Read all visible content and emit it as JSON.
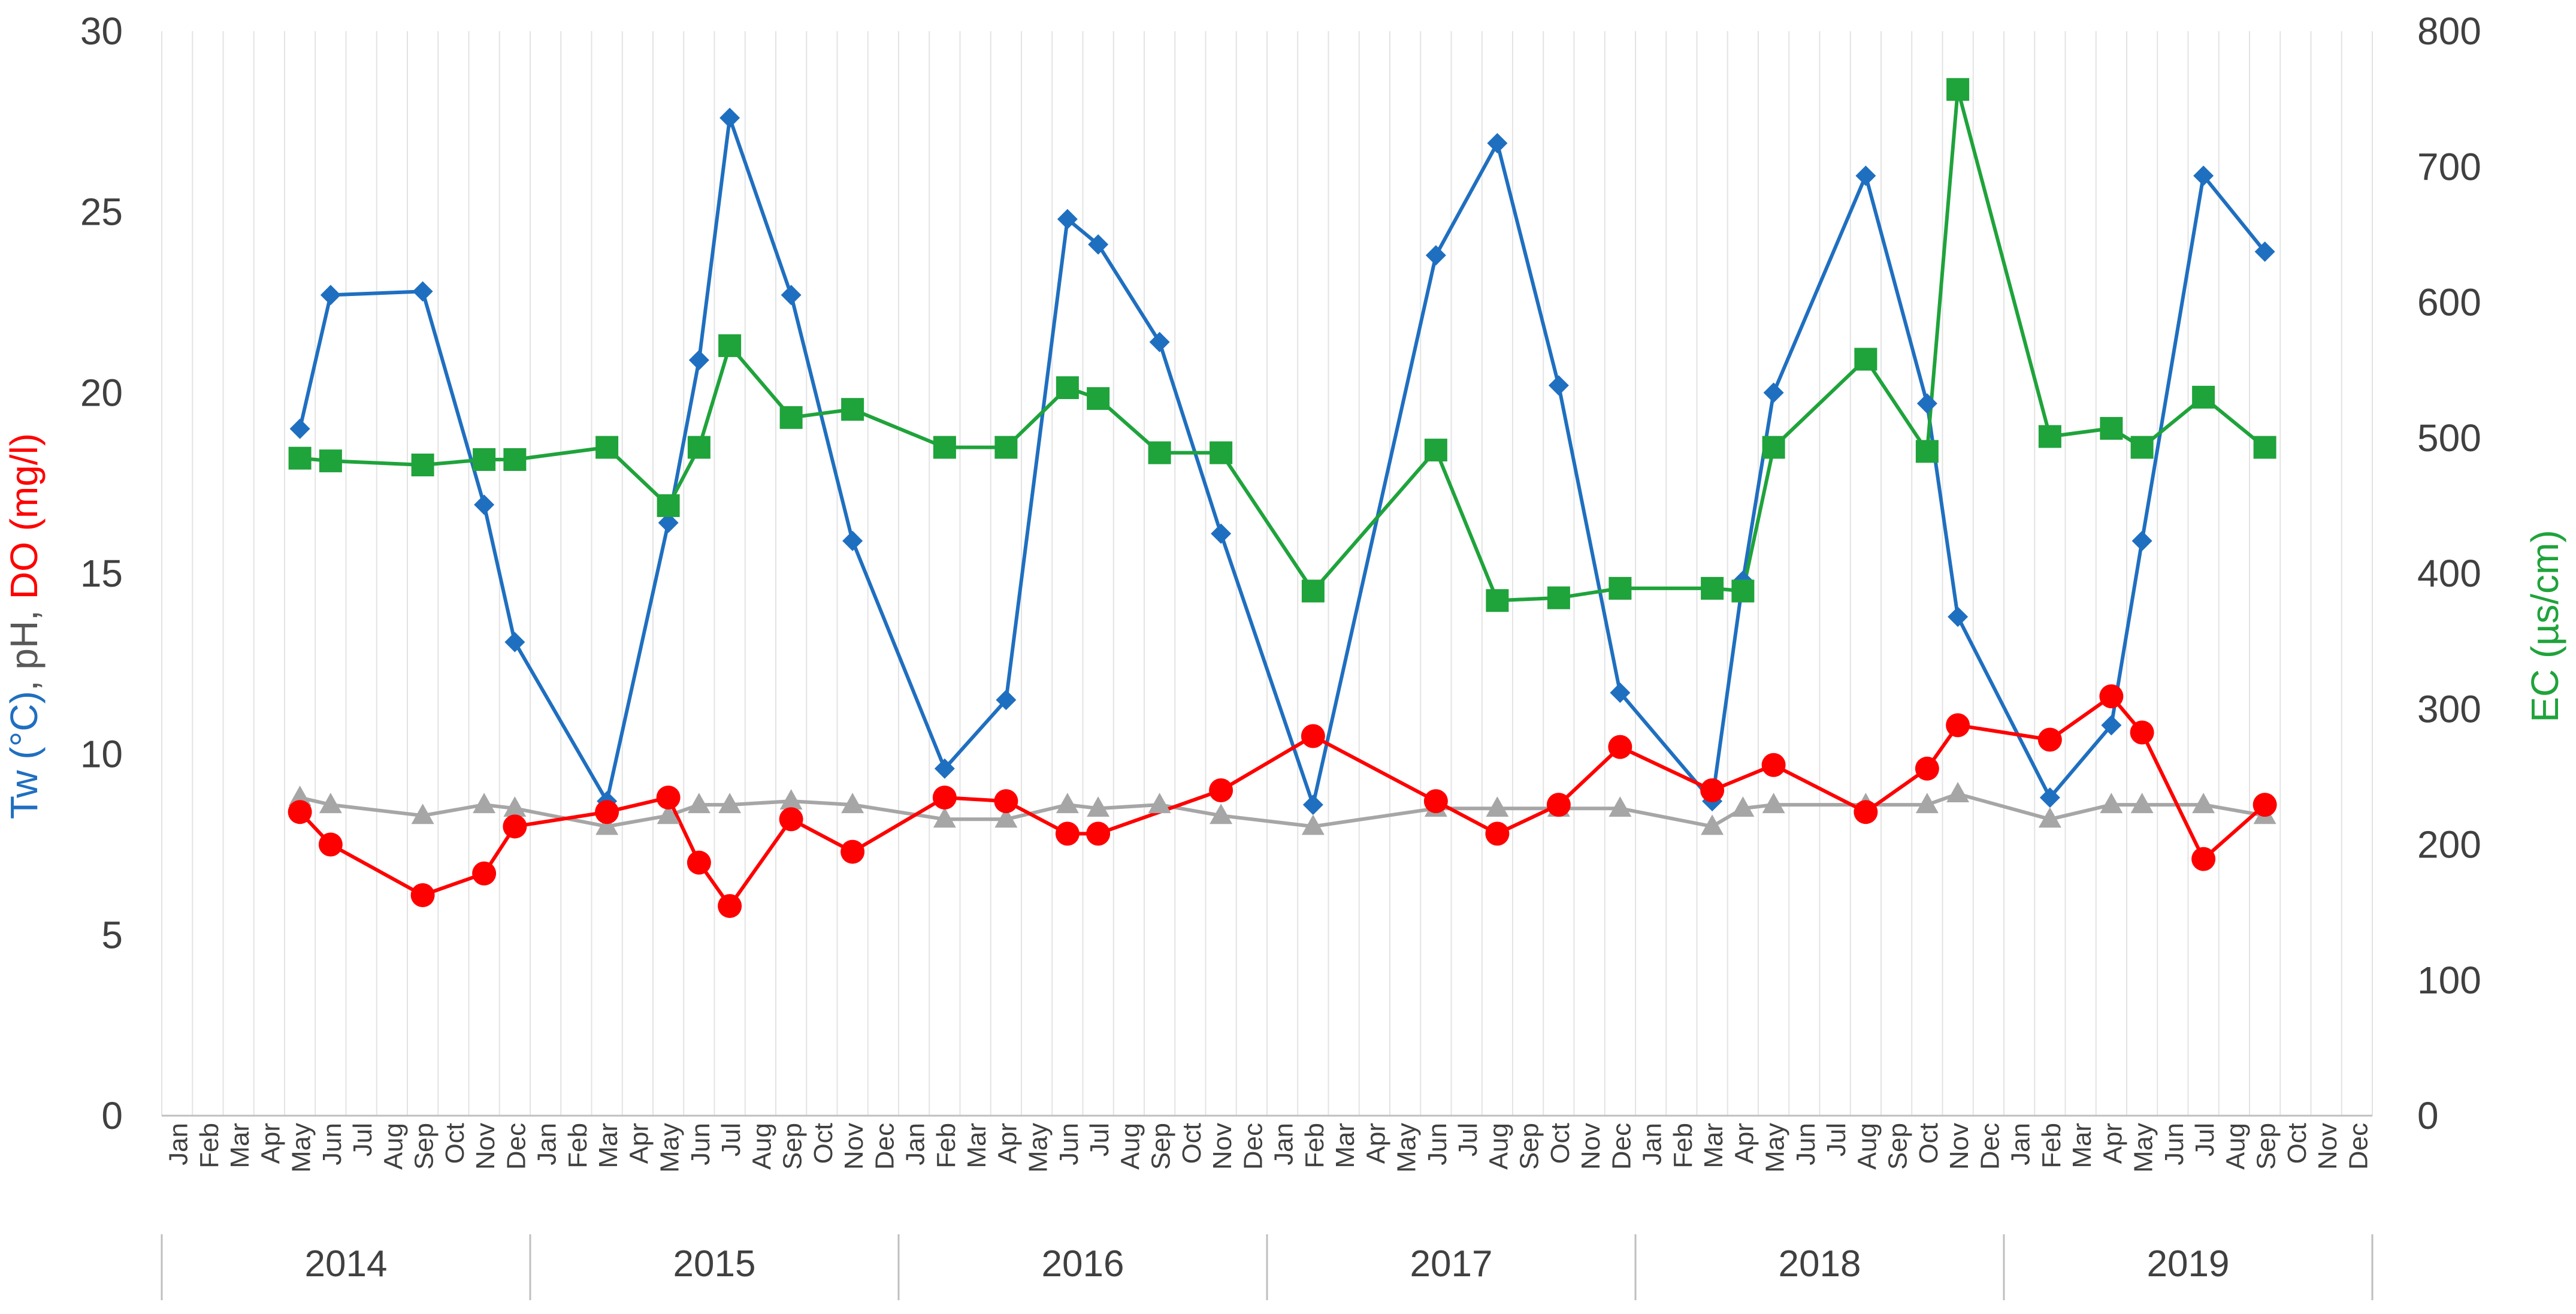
{
  "chart_data": {
    "type": "line",
    "y_left_label_parts": [
      {
        "text": "Tw (°C)",
        "color": "#1F6FC0"
      },
      {
        "text": ", pH, ",
        "color": "#595959"
      },
      {
        "text": "DO (mg/l)",
        "color": "#FF0000"
      }
    ],
    "y_right_label": "EC (µs/cm)",
    "y_right_label_color": "#1FA33B",
    "y_left_lim": [
      0,
      30
    ],
    "y_left_ticks": [
      0,
      5,
      10,
      15,
      20,
      25,
      30
    ],
    "y_right_lim": [
      0,
      800
    ],
    "y_right_ticks": [
      0,
      100,
      200,
      300,
      400,
      500,
      600,
      700,
      800
    ],
    "grid": "vertical-monthly",
    "months": [
      "Jan",
      "Feb",
      "Mar",
      "Apr",
      "May",
      "Jun",
      "Jul",
      "Aug",
      "Sep",
      "Oct",
      "Nov",
      "Dec"
    ],
    "years": [
      "2014",
      "2015",
      "2016",
      "2017",
      "2018",
      "2019"
    ],
    "series": [
      {
        "name": "Tw (°C)",
        "axis": "left",
        "color": "#1F6FC0",
        "marker": "diamond",
        "points": [
          [
            "2014-05",
            19.0
          ],
          [
            "2014-06",
            22.7
          ],
          [
            "2014-09",
            22.8
          ],
          [
            "2014-11",
            16.9
          ],
          [
            "2014-12",
            13.1
          ],
          [
            "2015-03",
            8.7
          ],
          [
            "2015-05",
            16.4
          ],
          [
            "2015-06",
            20.9
          ],
          [
            "2015-07",
            27.6
          ],
          [
            "2015-09",
            22.7
          ],
          [
            "2015-11",
            15.9
          ],
          [
            "2016-02",
            9.6
          ],
          [
            "2016-04",
            11.5
          ],
          [
            "2016-06",
            24.8
          ],
          [
            "2016-07",
            24.1
          ],
          [
            "2016-09",
            21.4
          ],
          [
            "2016-11",
            16.1
          ],
          [
            "2017-02",
            8.6
          ],
          [
            "2017-06",
            23.8
          ],
          [
            "2017-08",
            26.9
          ],
          [
            "2017-10",
            20.2
          ],
          [
            "2017-12",
            11.7
          ],
          [
            "2018-03",
            8.7
          ],
          [
            "2018-04",
            14.8
          ],
          [
            "2018-05",
            20.0
          ],
          [
            "2018-08",
            26.0
          ],
          [
            "2018-10",
            19.7
          ],
          [
            "2018-11",
            13.8
          ],
          [
            "2019-02",
            8.8
          ],
          [
            "2019-04",
            10.8
          ],
          [
            "2019-05",
            15.9
          ],
          [
            "2019-07",
            26.0
          ],
          [
            "2019-09",
            23.9
          ]
        ]
      },
      {
        "name": "pH",
        "axis": "left",
        "color": "#A6A6A6",
        "marker": "triangle",
        "points": [
          [
            "2014-05",
            8.8
          ],
          [
            "2014-06",
            8.6
          ],
          [
            "2014-09",
            8.3
          ],
          [
            "2014-11",
            8.6
          ],
          [
            "2014-12",
            8.5
          ],
          [
            "2015-03",
            8.0
          ],
          [
            "2015-05",
            8.3
          ],
          [
            "2015-06",
            8.6
          ],
          [
            "2015-07",
            8.6
          ],
          [
            "2015-09",
            8.7
          ],
          [
            "2015-11",
            8.6
          ],
          [
            "2016-02",
            8.2
          ],
          [
            "2016-04",
            8.2
          ],
          [
            "2016-06",
            8.6
          ],
          [
            "2016-07",
            8.5
          ],
          [
            "2016-09",
            8.6
          ],
          [
            "2016-11",
            8.3
          ],
          [
            "2017-02",
            8.0
          ],
          [
            "2017-06",
            8.5
          ],
          [
            "2017-08",
            8.5
          ],
          [
            "2017-10",
            8.5
          ],
          [
            "2017-12",
            8.5
          ],
          [
            "2018-03",
            8.0
          ],
          [
            "2018-04",
            8.5
          ],
          [
            "2018-05",
            8.6
          ],
          [
            "2018-08",
            8.6
          ],
          [
            "2018-10",
            8.6
          ],
          [
            "2018-11",
            8.9
          ],
          [
            "2019-02",
            8.2
          ],
          [
            "2019-04",
            8.6
          ],
          [
            "2019-05",
            8.6
          ],
          [
            "2019-07",
            8.6
          ],
          [
            "2019-09",
            8.3
          ]
        ]
      },
      {
        "name": "DO (mg/l)",
        "axis": "left",
        "color": "#FF0000",
        "marker": "circle",
        "points": [
          [
            "2014-05",
            8.4
          ],
          [
            "2014-06",
            7.5
          ],
          [
            "2014-09",
            6.1
          ],
          [
            "2014-11",
            6.7
          ],
          [
            "2014-12",
            8.0
          ],
          [
            "2015-03",
            8.4
          ],
          [
            "2015-05",
            8.8
          ],
          [
            "2015-06",
            7.0
          ],
          [
            "2015-07",
            5.8
          ],
          [
            "2015-09",
            8.2
          ],
          [
            "2015-11",
            7.3
          ],
          [
            "2016-02",
            8.8
          ],
          [
            "2016-04",
            8.7
          ],
          [
            "2016-06",
            7.8
          ],
          [
            "2016-07",
            7.8
          ],
          [
            "2016-11",
            9.0
          ],
          [
            "2017-02",
            10.5
          ],
          [
            "2017-06",
            8.7
          ],
          [
            "2017-08",
            7.8
          ],
          [
            "2017-10",
            8.6
          ],
          [
            "2017-12",
            10.2
          ],
          [
            "2018-03",
            9.0
          ],
          [
            "2018-05",
            9.7
          ],
          [
            "2018-08",
            8.4
          ],
          [
            "2018-10",
            9.6
          ],
          [
            "2018-11",
            10.8
          ],
          [
            "2019-02",
            10.4
          ],
          [
            "2019-04",
            11.6
          ],
          [
            "2019-05",
            10.6
          ],
          [
            "2019-07",
            7.1
          ],
          [
            "2019-09",
            8.6
          ]
        ]
      },
      {
        "name": "EC (µs/cm)",
        "axis": "right",
        "color": "#1FA33B",
        "marker": "square",
        "points": [
          [
            "2014-05",
            485
          ],
          [
            "2014-06",
            483
          ],
          [
            "2014-09",
            480
          ],
          [
            "2014-11",
            484
          ],
          [
            "2014-12",
            484
          ],
          [
            "2015-03",
            493
          ],
          [
            "2015-05",
            450
          ],
          [
            "2015-06",
            493
          ],
          [
            "2015-07",
            568
          ],
          [
            "2015-09",
            515
          ],
          [
            "2015-11",
            521
          ],
          [
            "2016-02",
            493
          ],
          [
            "2016-04",
            493
          ],
          [
            "2016-06",
            537
          ],
          [
            "2016-07",
            529
          ],
          [
            "2016-09",
            489
          ],
          [
            "2016-11",
            489
          ],
          [
            "2017-02",
            387
          ],
          [
            "2017-06",
            491
          ],
          [
            "2017-08",
            380
          ],
          [
            "2017-10",
            382
          ],
          [
            "2017-12",
            389
          ],
          [
            "2018-03",
            389
          ],
          [
            "2018-04",
            387
          ],
          [
            "2018-05",
            493
          ],
          [
            "2018-08",
            558
          ],
          [
            "2018-10",
            490
          ],
          [
            "2018-11",
            757
          ],
          [
            "2019-02",
            501
          ],
          [
            "2019-04",
            507
          ],
          [
            "2019-05",
            493
          ],
          [
            "2019-07",
            530
          ],
          [
            "2019-09",
            493
          ]
        ]
      }
    ]
  }
}
